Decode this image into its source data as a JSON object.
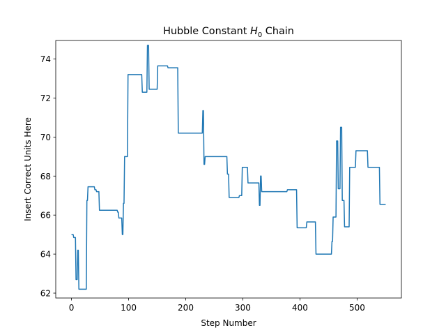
{
  "chart_data": {
    "type": "line",
    "title_main": "Hubble Constant ",
    "title_symbol": "H",
    "title_subscript": "0",
    "title_tail": " Chain",
    "xlabel": "Step Number",
    "ylabel": "Insert Correct Units Here",
    "xlim": [
      -27.5,
      577.5
    ],
    "ylim": [
      61.75,
      74.95
    ],
    "xticks": [
      0,
      100,
      200,
      300,
      400,
      500
    ],
    "yticks": [
      62,
      64,
      66,
      68,
      70,
      72,
      74
    ],
    "grid": false,
    "legend": "none",
    "line_color": "#1f77b4",
    "series": [
      {
        "x": [
          0,
          3,
          4,
          7,
          8,
          10,
          11,
          12,
          13,
          26,
          27,
          28,
          29,
          40,
          41,
          43,
          44,
          48,
          49,
          80,
          81,
          82,
          83,
          88,
          89,
          90,
          91,
          92,
          93,
          96,
          97,
          98,
          99,
          116,
          117,
          123,
          124,
          132,
          133,
          135,
          136,
          150,
          151,
          168,
          169,
          186,
          187,
          229,
          230,
          231,
          232,
          233,
          234,
          272,
          273,
          275,
          276,
          293,
          294,
          298,
          299,
          308,
          309,
          328,
          329,
          330,
          331,
          332,
          333,
          377,
          378,
          394,
          395,
          411,
          412,
          427,
          428,
          455,
          456,
          457,
          458,
          463,
          464,
          466,
          467,
          470,
          471,
          473,
          474,
          477,
          478,
          486,
          487,
          497,
          498,
          518,
          519,
          539,
          540,
          550
        ],
        "y": [
          65.0,
          65.0,
          64.85,
          64.85,
          62.7,
          62.7,
          64.2,
          64.2,
          62.2,
          62.2,
          66.75,
          66.75,
          67.45,
          67.45,
          67.3,
          67.3,
          67.2,
          67.2,
          66.25,
          66.25,
          66.15,
          66.15,
          65.85,
          65.85,
          65.0,
          65.0,
          66.6,
          66.6,
          69.0,
          69.0,
          69.0,
          69.0,
          73.2,
          73.2,
          73.2,
          73.2,
          72.3,
          72.3,
          74.7,
          74.7,
          72.45,
          72.45,
          73.65,
          73.65,
          73.55,
          73.55,
          70.2,
          70.2,
          71.35,
          71.35,
          68.6,
          68.6,
          69.0,
          69.0,
          68.1,
          68.1,
          66.9,
          66.9,
          67.0,
          67.0,
          68.45,
          68.45,
          67.65,
          67.65,
          66.5,
          66.5,
          68.0,
          68.0,
          67.2,
          67.2,
          67.3,
          67.3,
          65.35,
          65.35,
          65.65,
          65.65,
          64.0,
          64.0,
          64.65,
          64.65,
          65.9,
          65.9,
          69.8,
          69.8,
          67.35,
          67.35,
          70.5,
          70.5,
          66.75,
          66.75,
          65.4,
          65.4,
          68.45,
          68.45,
          69.3,
          69.3,
          68.45,
          68.45,
          66.55,
          66.55
        ]
      }
    ]
  }
}
